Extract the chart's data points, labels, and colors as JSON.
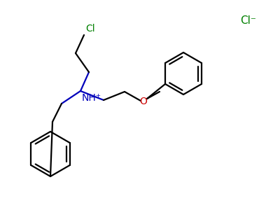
{
  "bg_color": "#ffffff",
  "bond_color": "#000000",
  "N_color": "#0000bb",
  "O_color": "#cc0000",
  "Cl_color": "#008000",
  "N_label": "NH⁺",
  "O_label": "O",
  "Cl_top_label": "Cl",
  "Cl_ion_label": "Cl⁻",
  "figsize": [
    4.0,
    3.0
  ],
  "dpi": 100
}
